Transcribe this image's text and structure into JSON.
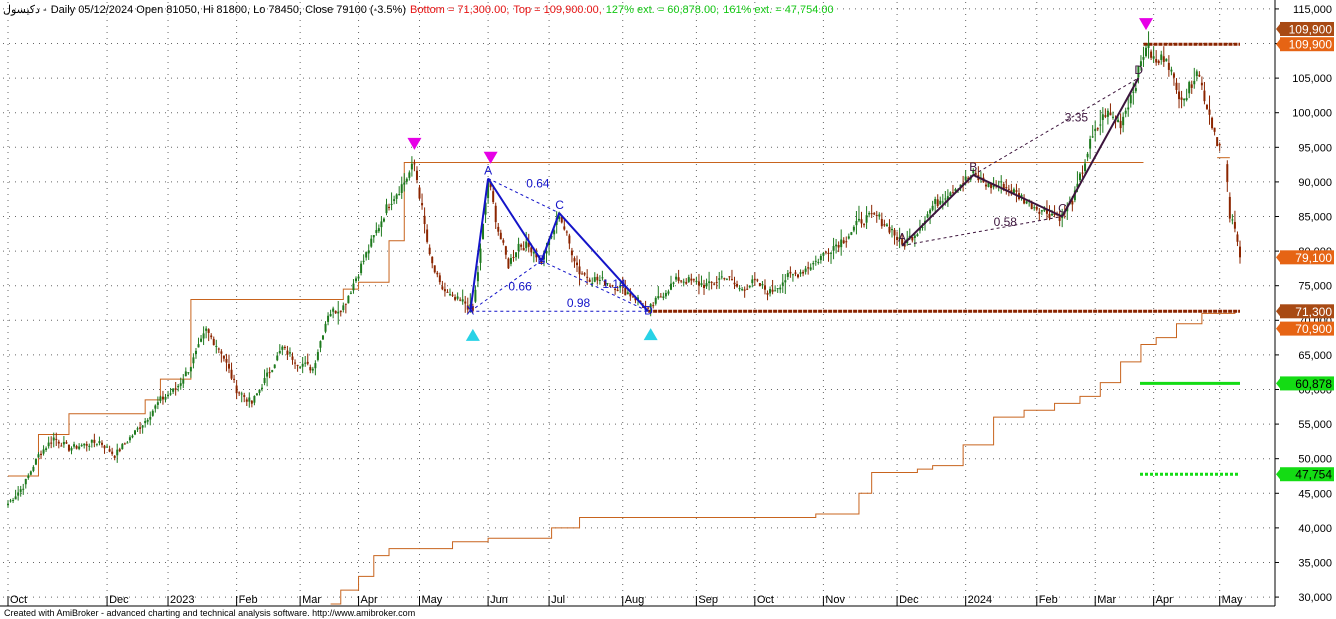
{
  "header": {
    "ticker": "دكيسول -",
    "info": "Daily 05/12/2024 Open 81050, Hi 81800, Lo 78450, Close 79100 (-3.5%)",
    "bottom": "Bottom = 71,300.00,",
    "top": "Top = 109,900.00,",
    "ext127": "127% ext. = 60,878.00,",
    "ext161": "161% ext. = 47,754.00"
  },
  "footer": "Created with AmiBroker - advanced charting and technical analysis software. http://www.amibroker.com",
  "colors": {
    "up": "#1e7a1e",
    "down": "#8b2500",
    "level": "#c8641e",
    "pattern": "#1414c8",
    "pattern2": "#3c143c",
    "marker_top": "#e600e6",
    "marker_bottom": "#28d2e6",
    "ext_green": "#14dc14"
  },
  "chart_data": {
    "type": "candlestick",
    "y_axis": {
      "min": 29000,
      "max": 116000,
      "position": "right",
      "ticks": [
        "115,000",
        "110,000",
        "105,000",
        "100,000",
        "95,000",
        "90,000",
        "85,000",
        "80,000",
        "75,000",
        "70,000",
        "65,000",
        "60,000",
        "55,000",
        "50,000",
        "45,000",
        "40,000",
        "35,000",
        "30,000"
      ]
    },
    "x_axis": {
      "labels": [
        {
          "label": "Oct",
          "i": 0
        },
        {
          "label": "Dec",
          "i": 39
        },
        {
          "label": "2023",
          "i": 63
        },
        {
          "label": "Feb",
          "i": 90
        },
        {
          "label": "Mar",
          "i": 115
        },
        {
          "label": "Apr",
          "i": 138
        },
        {
          "label": "May",
          "i": 162
        },
        {
          "label": "Jun",
          "i": 189
        },
        {
          "label": "Jul",
          "i": 213
        },
        {
          "label": "Aug",
          "i": 242
        },
        {
          "label": "Sep",
          "i": 271
        },
        {
          "label": "Oct",
          "i": 294
        },
        {
          "label": "Nov",
          "i": 321
        },
        {
          "label": "Dec",
          "i": 350
        },
        {
          "label": "2024",
          "i": 377
        },
        {
          "label": "Feb",
          "i": 405
        },
        {
          "label": "Mar",
          "i": 428
        },
        {
          "label": "Apr",
          "i": 451
        },
        {
          "label": "May",
          "i": 477
        }
      ],
      "last_index": 485
    },
    "close_path": [
      [
        0,
        43500
      ],
      [
        6,
        46000
      ],
      [
        12,
        50500
      ],
      [
        18,
        53000
      ],
      [
        24,
        51500
      ],
      [
        30,
        52000
      ],
      [
        36,
        52500
      ],
      [
        42,
        50500
      ],
      [
        48,
        53000
      ],
      [
        54,
        55500
      ],
      [
        60,
        58500
      ],
      [
        66,
        60000
      ],
      [
        72,
        63500
      ],
      [
        78,
        68500
      ],
      [
        84,
        65500
      ],
      [
        90,
        60000
      ],
      [
        96,
        58000
      ],
      [
        102,
        62000
      ],
      [
        108,
        66000
      ],
      [
        114,
        64000
      ],
      [
        120,
        63000
      ],
      [
        126,
        71000
      ],
      [
        132,
        72000
      ],
      [
        138,
        77000
      ],
      [
        144,
        82000
      ],
      [
        150,
        87000
      ],
      [
        156,
        90000
      ],
      [
        160,
        92600
      ],
      [
        163,
        86000
      ],
      [
        166,
        79000
      ],
      [
        170,
        75000
      ],
      [
        175,
        73000
      ],
      [
        180,
        72500
      ],
      [
        183,
        71300
      ],
      [
        186,
        80000
      ],
      [
        189,
        90500
      ],
      [
        193,
        83000
      ],
      [
        197,
        78000
      ],
      [
        201,
        81000
      ],
      [
        206,
        80500
      ],
      [
        210,
        78600
      ],
      [
        214,
        82000
      ],
      [
        217,
        85500
      ],
      [
        221,
        81000
      ],
      [
        225,
        77000
      ],
      [
        230,
        76000
      ],
      [
        236,
        75500
      ],
      [
        242,
        74500
      ],
      [
        248,
        73000
      ],
      [
        252,
        71300
      ],
      [
        258,
        74000
      ],
      [
        264,
        76000
      ],
      [
        270,
        75500
      ],
      [
        276,
        75000
      ],
      [
        282,
        76500
      ],
      [
        288,
        74500
      ],
      [
        294,
        75500
      ],
      [
        300,
        74000
      ],
      [
        306,
        76000
      ],
      [
        312,
        77000
      ],
      [
        318,
        78500
      ],
      [
        324,
        80500
      ],
      [
        330,
        82000
      ],
      [
        336,
        84500
      ],
      [
        342,
        85000
      ],
      [
        348,
        83000
      ],
      [
        352,
        80800
      ],
      [
        358,
        83000
      ],
      [
        364,
        86500
      ],
      [
        370,
        88500
      ],
      [
        376,
        90000
      ],
      [
        380,
        91000
      ],
      [
        386,
        89500
      ],
      [
        392,
        89500
      ],
      [
        398,
        88000
      ],
      [
        404,
        86500
      ],
      [
        410,
        85500
      ],
      [
        415,
        85000
      ],
      [
        420,
        88000
      ],
      [
        426,
        95500
      ],
      [
        432,
        100000
      ],
      [
        438,
        98500
      ],
      [
        444,
        104500
      ],
      [
        448,
        109900
      ],
      [
        452,
        107000
      ],
      [
        456,
        108500
      ],
      [
        460,
        103000
      ],
      [
        464,
        102500
      ],
      [
        468,
        106500
      ],
      [
        472,
        101000
      ],
      [
        476,
        96000
      ],
      [
        479,
        93500
      ],
      [
        481,
        85000
      ],
      [
        483,
        83000
      ],
      [
        485,
        79100
      ]
    ],
    "levels": {
      "bottom": 71300,
      "top": 109900,
      "ext127": 60878,
      "ext161": 47754,
      "resistance": 92800,
      "last_close": 79100,
      "last_low": 70900
    },
    "pattern1": {
      "points": [
        {
          "label": "X",
          "i": 182,
          "v": 71300
        },
        {
          "label": "A",
          "i": 189,
          "v": 90500
        },
        {
          "label": "B",
          "i": 210,
          "v": 78600
        },
        {
          "label": "C",
          "i": 217,
          "v": 85500
        },
        {
          "label": "D",
          "i": 252,
          "v": 71300
        }
      ],
      "ratios": [
        {
          "label": "0.64",
          "i": 204,
          "v": 89200
        },
        {
          "label": "0.66",
          "i": 197,
          "v": 74300
        },
        {
          "label": "0.98",
          "i": 220,
          "v": 71900
        },
        {
          "label": "1.14",
          "i": 234,
          "v": 74700
        }
      ]
    },
    "pattern2": {
      "points": [
        {
          "label": "A",
          "i": 352,
          "v": 80800
        },
        {
          "label": "B",
          "i": 380,
          "v": 91000
        },
        {
          "label": "C",
          "i": 415,
          "v": 85000
        },
        {
          "label": "D",
          "i": 445,
          "v": 105000
        }
      ],
      "ratios": [
        {
          "label": "3.35",
          "i": 416,
          "v": 98700
        },
        {
          "label": "0.58",
          "i": 388,
          "v": 83600
        }
      ]
    },
    "markers": [
      {
        "type": "top",
        "i": 160,
        "v": 95500
      },
      {
        "type": "top",
        "i": 190,
        "v": 93500
      },
      {
        "type": "top",
        "i": 448,
        "v": 112800
      },
      {
        "type": "bottom",
        "i": 183,
        "v": 67900
      },
      {
        "type": "bottom",
        "i": 253,
        "v": 68000
      }
    ],
    "badges": [
      {
        "label": "109,900",
        "v": 112100,
        "color": "#a84a14"
      },
      {
        "label": "109,900",
        "v": 109900,
        "color": "#e66414"
      },
      {
        "label": "79,100",
        "v": 79100,
        "color": "#e66414"
      },
      {
        "label": "71,300",
        "v": 71300,
        "color": "#a84a14"
      },
      {
        "label": "70,900",
        "v": 68800,
        "color": "#e66414"
      },
      {
        "label": "60,878",
        "v": 60878,
        "color": "#14dc14"
      },
      {
        "label": "47,754",
        "v": 47754,
        "color": "#14dc14"
      }
    ]
  }
}
